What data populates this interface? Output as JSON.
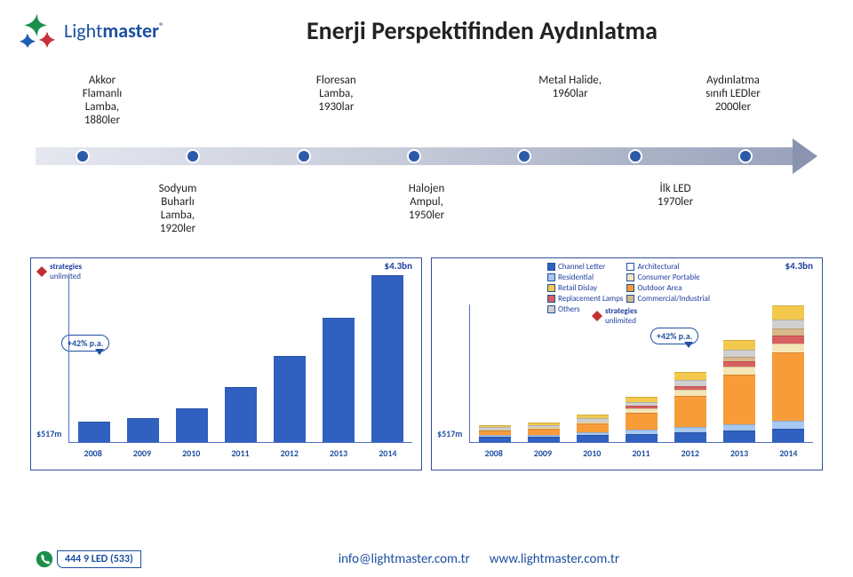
{
  "brand": {
    "name_part1": "Light",
    "name_part2": "master",
    "reg": "®",
    "color_dark": "#1b4fa0"
  },
  "title": "Enerji Perspektifinden Aydınlatma",
  "timeline": {
    "top": [
      {
        "l1": "Akkor",
        "l2": "Flamanlı",
        "l3": "Lamba,",
        "l4": "1880ler"
      },
      {
        "l1": "Floresan",
        "l2": "Lamba,",
        "l3": "1930lar",
        "l4": ""
      },
      {
        "l1": "Metal Halide,",
        "l2": "1960lar",
        "l3": "",
        "l4": ""
      },
      {
        "l1": "Aydınlatma",
        "l2": "sınıfı LEDler",
        "l3": "2000ler",
        "l4": ""
      }
    ],
    "bottom": [
      {
        "l1": "Sodyum",
        "l2": "Buharlı",
        "l3": "Lamba,",
        "l4": "1920ler"
      },
      {
        "l1": "Halojen",
        "l2": "Ampul,",
        "l3": "1950ler",
        "l4": ""
      },
      {
        "l1": "İlk LED",
        "l2": "1970ler",
        "l3": "",
        "l4": ""
      }
    ],
    "dot_color": "#2b5aa8"
  },
  "charts": {
    "strat_brand": {
      "p1": "strategies",
      "p2": "unlimited"
    },
    "y_top": "$4.3bn",
    "y_bottom": "$517m",
    "bubble": "+42% p.a.",
    "years": [
      "2008",
      "2009",
      "2010",
      "2011",
      "2012",
      "2013",
      "2014"
    ],
    "left": {
      "type": "bar",
      "max": 4.3,
      "series": [
        {
          "total": 0.52,
          "segments": [
            {
              "c": "#3060c0",
              "v": 0.52
            }
          ]
        },
        {
          "total": 0.6,
          "segments": [
            {
              "c": "#3060c0",
              "v": 0.6
            }
          ]
        },
        {
          "total": 0.85,
          "segments": [
            {
              "c": "#3060c0",
              "v": 0.85
            }
          ]
        },
        {
          "total": 1.4,
          "segments": [
            {
              "c": "#3060c0",
              "v": 1.4
            }
          ]
        },
        {
          "total": 2.2,
          "segments": [
            {
              "c": "#3060c0",
              "v": 2.2
            }
          ]
        },
        {
          "total": 3.2,
          "segments": [
            {
              "c": "#3060c0",
              "v": 3.2
            }
          ]
        },
        {
          "total": 4.3,
          "segments": [
            {
              "c": "#3060c0",
              "v": 4.3
            }
          ]
        }
      ]
    },
    "right": {
      "type": "stacked-bar",
      "max": 4.3,
      "legend": [
        {
          "label": "Channel Letter",
          "color": "#3060c0"
        },
        {
          "label": "Residential",
          "color": "#a7c8f0"
        },
        {
          "label": "Retail Dislay",
          "color": "#f2c94c"
        },
        {
          "label": "Replacement Lamps",
          "color": "#d86060"
        },
        {
          "label": "Others",
          "color": "#d0d0d0"
        },
        {
          "label": "Architectural",
          "color": "#ffffff"
        },
        {
          "label": "Consumer Portable",
          "color": "#f5e6b8"
        },
        {
          "label": "Outdoor Area",
          "color": "#f89c3a"
        },
        {
          "label": "Commercial/Industrial",
          "color": "#d6b88a"
        }
      ],
      "series": [
        {
          "total": 0.52,
          "segments": [
            {
              "c": "#3060c0",
              "v": 0.15
            },
            {
              "c": "#a7c8f0",
              "v": 0.05
            },
            {
              "c": "#f89c3a",
              "v": 0.14
            },
            {
              "c": "#f5e6b8",
              "v": 0.05
            },
            {
              "c": "#d0d0d0",
              "v": 0.07
            },
            {
              "c": "#f2c94c",
              "v": 0.06
            }
          ]
        },
        {
          "total": 0.6,
          "segments": [
            {
              "c": "#3060c0",
              "v": 0.16
            },
            {
              "c": "#a7c8f0",
              "v": 0.06
            },
            {
              "c": "#f89c3a",
              "v": 0.18
            },
            {
              "c": "#f5e6b8",
              "v": 0.06
            },
            {
              "c": "#d0d0d0",
              "v": 0.07
            },
            {
              "c": "#f2c94c",
              "v": 0.07
            }
          ]
        },
        {
          "total": 0.85,
          "segments": [
            {
              "c": "#3060c0",
              "v": 0.2
            },
            {
              "c": "#a7c8f0",
              "v": 0.08
            },
            {
              "c": "#f89c3a",
              "v": 0.28
            },
            {
              "c": "#f5e6b8",
              "v": 0.08
            },
            {
              "c": "#d0d0d0",
              "v": 0.1
            },
            {
              "c": "#f2c94c",
              "v": 0.11
            }
          ]
        },
        {
          "total": 1.4,
          "segments": [
            {
              "c": "#3060c0",
              "v": 0.25
            },
            {
              "c": "#a7c8f0",
              "v": 0.12
            },
            {
              "c": "#f89c3a",
              "v": 0.55
            },
            {
              "c": "#f5e6b8",
              "v": 0.12
            },
            {
              "c": "#d86060",
              "v": 0.08
            },
            {
              "c": "#d0d0d0",
              "v": 0.12
            },
            {
              "c": "#f2c94c",
              "v": 0.16
            }
          ]
        },
        {
          "total": 2.2,
          "segments": [
            {
              "c": "#3060c0",
              "v": 0.3
            },
            {
              "c": "#a7c8f0",
              "v": 0.15
            },
            {
              "c": "#f89c3a",
              "v": 1.0
            },
            {
              "c": "#f5e6b8",
              "v": 0.18
            },
            {
              "c": "#d86060",
              "v": 0.12
            },
            {
              "c": "#d0d0d0",
              "v": 0.18
            },
            {
              "c": "#f2c94c",
              "v": 0.27
            }
          ]
        },
        {
          "total": 3.2,
          "segments": [
            {
              "c": "#3060c0",
              "v": 0.35
            },
            {
              "c": "#a7c8f0",
              "v": 0.2
            },
            {
              "c": "#f89c3a",
              "v": 1.55
            },
            {
              "c": "#f5e6b8",
              "v": 0.26
            },
            {
              "c": "#d86060",
              "v": 0.18
            },
            {
              "c": "#d6b88a",
              "v": 0.12
            },
            {
              "c": "#d0d0d0",
              "v": 0.22
            },
            {
              "c": "#f2c94c",
              "v": 0.32
            }
          ]
        },
        {
          "total": 4.3,
          "segments": [
            {
              "c": "#3060c0",
              "v": 0.4
            },
            {
              "c": "#a7c8f0",
              "v": 0.25
            },
            {
              "c": "#f89c3a",
              "v": 2.15
            },
            {
              "c": "#f5e6b8",
              "v": 0.3
            },
            {
              "c": "#d86060",
              "v": 0.25
            },
            {
              "c": "#d6b88a",
              "v": 0.2
            },
            {
              "c": "#d0d0d0",
              "v": 0.3
            },
            {
              "c": "#f2c94c",
              "v": 0.45
            }
          ]
        }
      ]
    }
  },
  "footer": {
    "phone": "444 9 LED (533)",
    "email": "info@lightmaster.com.tr",
    "web": "www.lightmaster.com.tr"
  }
}
